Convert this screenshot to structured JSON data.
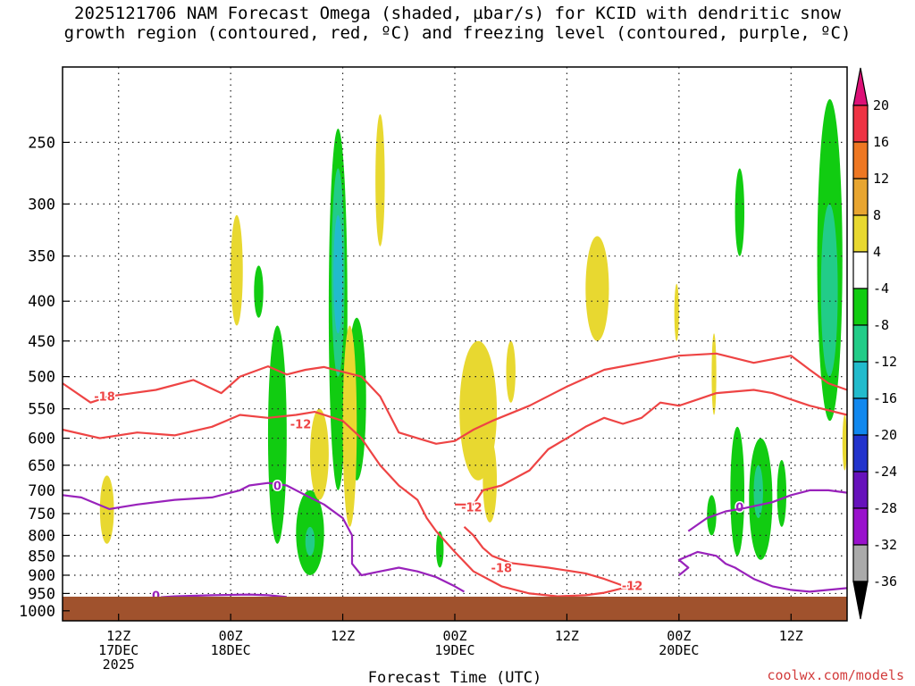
{
  "title_line1": "2025121706 NAM Forecast Omega (shaded, µbar/s) for KCID with dendritic snow",
  "title_line2": "growth region (contoured, red, ºC) and freezing level (contoured, purple, ºC)",
  "watermark": "coolwx.com/models",
  "colors": {
    "dendritic": "#ee4444",
    "freezing": "#9922bb",
    "ground": "#a0522d"
  },
  "chart_data": {
    "type": "heatmap",
    "xlabel": "Forecast Time (UTC)",
    "ylabel": "",
    "x_ticks": [
      {
        "hours": 6,
        "lines": [
          "12Z",
          "17DEC",
          "2025"
        ]
      },
      {
        "hours": 18,
        "lines": [
          "00Z",
          "18DEC"
        ]
      },
      {
        "hours": 30,
        "lines": [
          "12Z"
        ]
      },
      {
        "hours": 42,
        "lines": [
          "00Z",
          "19DEC"
        ]
      },
      {
        "hours": 54,
        "lines": [
          "12Z"
        ]
      },
      {
        "hours": 66,
        "lines": [
          "00Z",
          "20DEC"
        ]
      },
      {
        "hours": 78,
        "lines": [
          "12Z"
        ]
      }
    ],
    "xlim_hours": [
      0,
      84
    ],
    "y_ticks": [
      250,
      300,
      350,
      400,
      450,
      500,
      550,
      600,
      650,
      700,
      750,
      800,
      850,
      900,
      950,
      1000
    ],
    "ylim_hPa": [
      200,
      1030
    ],
    "y_scale": "log-pressure",
    "grid": true,
    "colorbar": {
      "labels": [
        "20",
        "16",
        "12",
        "8",
        "4",
        "-4",
        "-8",
        "-12",
        "-16",
        "-20",
        "-24",
        "-28",
        "-32",
        "-36"
      ],
      "colors": [
        "#dd1177",
        "#ee3344",
        "#ee7722",
        "#e8a530",
        "#e8d830",
        "#ffffff",
        "#11cc11",
        "#22cc88",
        "#22bbcc",
        "#1188ee",
        "#2233cc",
        "#6611bb",
        "#9911cc",
        "#aaaaaa",
        "#000000"
      ],
      "extend": "both"
    },
    "omega_regions": [
      {
        "value": -6,
        "hours": [
          28.5,
          30.5
        ],
        "p": [
          240,
          700
        ]
      },
      {
        "value": -10,
        "hours": [
          28.8,
          30.2
        ],
        "p": [
          270,
          500
        ]
      },
      {
        "value": -14,
        "hours": [
          29.0,
          30.0
        ],
        "p": [
          310,
          440
        ]
      },
      {
        "value": -6,
        "hours": [
          22.0,
          24.0
        ],
        "p": [
          430,
          820
        ]
      },
      {
        "value": -6,
        "hours": [
          25.0,
          28.0
        ],
        "p": [
          700,
          900
        ]
      },
      {
        "value": -10,
        "hours": [
          26.0,
          27.0
        ],
        "p": [
          780,
          850
        ]
      },
      {
        "value": -6,
        "hours": [
          30.5,
          32.5
        ],
        "p": [
          420,
          680
        ]
      },
      {
        "value": -6,
        "hours": [
          20.5,
          21.5
        ],
        "p": [
          360,
          420
        ]
      },
      {
        "value": -6,
        "hours": [
          40.0,
          40.8
        ],
        "p": [
          790,
          880
        ]
      },
      {
        "value": -6,
        "hours": [
          71.5,
          73.0
        ],
        "p": [
          580,
          850
        ]
      },
      {
        "value": -6,
        "hours": [
          73.5,
          76.0
        ],
        "p": [
          600,
          860
        ]
      },
      {
        "value": -10,
        "hours": [
          74.0,
          75.0
        ],
        "p": [
          650,
          760
        ]
      },
      {
        "value": -6,
        "hours": [
          76.5,
          77.5
        ],
        "p": [
          640,
          780
        ]
      },
      {
        "value": -6,
        "hours": [
          69.0,
          70.0
        ],
        "p": [
          710,
          800
        ]
      },
      {
        "value": -6,
        "hours": [
          80.8,
          83.5
        ],
        "p": [
          220,
          570
        ]
      },
      {
        "value": -10,
        "hours": [
          81.2,
          83.0
        ],
        "p": [
          300,
          500
        ]
      },
      {
        "value": -6,
        "hours": [
          72.0,
          73.0
        ],
        "p": [
          270,
          350
        ]
      },
      {
        "value": 6,
        "hours": [
          18.0,
          19.3
        ],
        "p": [
          310,
          430
        ]
      },
      {
        "value": 6,
        "hours": [
          33.5,
          34.5
        ],
        "p": [
          230,
          340
        ]
      },
      {
        "value": 6,
        "hours": [
          30.0,
          31.5
        ],
        "p": [
          430,
          780
        ]
      },
      {
        "value": 6,
        "hours": [
          26.5,
          28.5
        ],
        "p": [
          550,
          720
        ]
      },
      {
        "value": 6,
        "hours": [
          4.0,
          5.5
        ],
        "p": [
          670,
          820
        ]
      },
      {
        "value": 6,
        "hours": [
          42.5,
          46.5
        ],
        "p": [
          450,
          680
        ]
      },
      {
        "value": 6,
        "hours": [
          45.0,
          46.5
        ],
        "p": [
          600,
          770
        ]
      },
      {
        "value": 6,
        "hours": [
          47.5,
          48.5
        ],
        "p": [
          450,
          540
        ]
      },
      {
        "value": 6,
        "hours": [
          56.0,
          58.5
        ],
        "p": [
          330,
          450
        ]
      },
      {
        "value": 6,
        "hours": [
          65.5,
          66.0
        ],
        "p": [
          380,
          450
        ]
      },
      {
        "value": 6,
        "hours": [
          69.5,
          70.0
        ],
        "p": [
          440,
          560
        ]
      },
      {
        "value": 6,
        "hours": [
          83.5,
          84.0
        ],
        "p": [
          560,
          660
        ]
      }
    ],
    "contours": [
      {
        "series": "dendritic",
        "label": "-18",
        "label_at": [
          4.5,
          530
        ],
        "points": [
          [
            0,
            510
          ],
          [
            3,
            540
          ],
          [
            5,
            530
          ],
          [
            10,
            520
          ],
          [
            14,
            505
          ],
          [
            17,
            525
          ],
          [
            19,
            500
          ],
          [
            22,
            485
          ],
          [
            24,
            497
          ],
          [
            26,
            490
          ],
          [
            28,
            486
          ],
          [
            32,
            500
          ],
          [
            34,
            530
          ],
          [
            36,
            590
          ],
          [
            38,
            600
          ],
          [
            40,
            610
          ],
          [
            42,
            605
          ],
          [
            44,
            585
          ],
          [
            46,
            570
          ],
          [
            50,
            545
          ],
          [
            54,
            515
          ],
          [
            58,
            490
          ],
          [
            62,
            480
          ],
          [
            66,
            470
          ],
          [
            70,
            467
          ],
          [
            74,
            480
          ],
          [
            78,
            470
          ],
          [
            80,
            490
          ],
          [
            82,
            510
          ],
          [
            84,
            520
          ]
        ]
      },
      {
        "series": "dendritic",
        "label": "-12",
        "label_at": [
          25.5,
          575
        ],
        "points": [
          [
            0,
            585
          ],
          [
            4,
            600
          ],
          [
            8,
            590
          ],
          [
            12,
            595
          ],
          [
            16,
            580
          ],
          [
            19,
            560
          ],
          [
            22,
            565
          ],
          [
            25,
            560
          ],
          [
            27,
            555
          ],
          [
            30,
            570
          ],
          [
            32,
            600
          ],
          [
            34,
            650
          ],
          [
            36,
            690
          ],
          [
            38,
            720
          ],
          [
            39,
            760
          ],
          [
            40,
            790
          ],
          [
            42,
            840
          ],
          [
            44,
            890
          ],
          [
            47,
            930
          ],
          [
            50,
            950
          ],
          [
            53,
            958
          ],
          [
            56,
            955
          ],
          [
            58,
            948
          ],
          [
            60,
            935
          ],
          [
            61,
            935
          ]
        ]
      },
      {
        "series": "dendritic",
        "label": "-12",
        "label_at": [
          43.8,
          735
        ],
        "points": [
          [
            42,
            730
          ],
          [
            44,
            730
          ],
          [
            45,
            700
          ],
          [
            47,
            690
          ],
          [
            48,
            680
          ],
          [
            50,
            660
          ],
          [
            52,
            620
          ],
          [
            54,
            600
          ],
          [
            56,
            580
          ],
          [
            58,
            565
          ],
          [
            60,
            575
          ],
          [
            62,
            565
          ],
          [
            64,
            540
          ],
          [
            66,
            545
          ],
          [
            68,
            535
          ],
          [
            70,
            525
          ],
          [
            74,
            520
          ],
          [
            76,
            525
          ],
          [
            78,
            535
          ],
          [
            80,
            545
          ],
          [
            84,
            560
          ]
        ]
      },
      {
        "series": "dendritic",
        "label": "-18",
        "label_at": [
          47,
          880
        ],
        "points": [
          [
            43,
            780
          ],
          [
            44,
            800
          ],
          [
            45,
            830
          ],
          [
            46,
            850
          ],
          [
            48,
            868
          ],
          [
            52,
            880
          ],
          [
            56,
            895
          ],
          [
            58,
            910
          ],
          [
            60,
            928
          ],
          [
            61,
            930
          ]
        ]
      },
      {
        "series": "dendritic",
        "label": "-12",
        "label_at": [
          61,
          928
        ],
        "points": [
          [
            60,
            935
          ],
          [
            62,
            928
          ]
        ]
      },
      {
        "series": "freezing",
        "label": "0",
        "label_at": [
          23,
          690
        ],
        "points": [
          [
            0,
            710
          ],
          [
            2,
            715
          ],
          [
            5,
            740
          ],
          [
            8,
            730
          ],
          [
            12,
            720
          ],
          [
            16,
            715
          ],
          [
            19,
            700
          ],
          [
            20,
            690
          ],
          [
            22,
            685
          ],
          [
            24,
            690
          ],
          [
            26,
            710
          ],
          [
            28,
            730
          ],
          [
            30,
            760
          ],
          [
            31,
            800
          ],
          [
            31,
            870
          ],
          [
            32,
            900
          ],
          [
            34,
            890
          ],
          [
            36,
            880
          ],
          [
            38,
            890
          ],
          [
            40,
            905
          ],
          [
            42,
            930
          ],
          [
            43,
            945
          ]
        ]
      },
      {
        "series": "freezing",
        "label": "0",
        "label_at": [
          10,
          955
        ],
        "points": [
          [
            4,
            975
          ],
          [
            8,
            965
          ],
          [
            12,
            958
          ],
          [
            16,
            955
          ],
          [
            20,
            953
          ],
          [
            22,
            955
          ],
          [
            24,
            960
          ]
        ]
      },
      {
        "series": "freezing",
        "label": "0",
        "label_at": [
          72.5,
          735
        ],
        "points": [
          [
            66,
            900
          ],
          [
            67,
            880
          ],
          [
            66,
            860
          ],
          [
            68,
            840
          ],
          [
            70,
            850
          ],
          [
            71,
            870
          ],
          [
            72,
            880
          ],
          [
            74,
            910
          ],
          [
            76,
            930
          ],
          [
            78,
            940
          ],
          [
            80,
            945
          ],
          [
            82,
            940
          ],
          [
            84,
            935
          ]
        ]
      },
      {
        "series": "freezing",
        "label": "",
        "label_at": [
          70,
          760
        ],
        "points": [
          [
            67,
            790
          ],
          [
            69,
            760
          ],
          [
            71,
            745
          ],
          [
            73,
            738
          ],
          [
            76,
            725
          ],
          [
            78,
            710
          ],
          [
            80,
            700
          ],
          [
            82,
            700
          ],
          [
            84,
            705
          ]
        ]
      }
    ]
  }
}
